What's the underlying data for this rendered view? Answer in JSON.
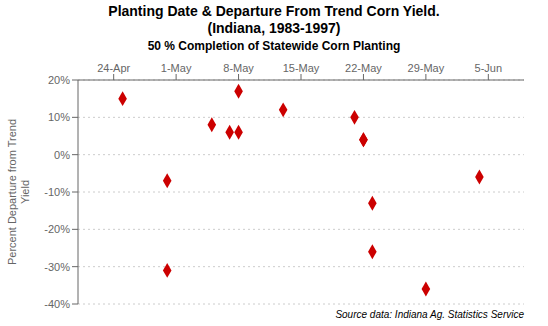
{
  "chart_data": {
    "type": "scatter",
    "title": "Planting Date & Departure From Trend Corn Yield.",
    "subtitle": "(Indiana, 1983-1997)",
    "xlabel": "50 % Completion of Statewide Corn Planting",
    "ylabel": "Percent Departure from Trend\nYield",
    "annotations": [
      "Source data: Indiana Ag. Statistics Service"
    ],
    "x": [
      6,
      6,
      11,
      13,
      14,
      14,
      19,
      27,
      28,
      28,
      29,
      29,
      35,
      1,
      41
    ],
    "values": [
      -31,
      -7,
      8,
      6,
      6,
      17,
      12,
      10,
      4,
      4,
      -26,
      -13,
      -36,
      15,
      -6
    ],
    "color": "#cc0000",
    "marker": "diamond",
    "xlim": [
      -4,
      46
    ],
    "xticks": [
      {
        "value": 0,
        "label": "24-Apr"
      },
      {
        "value": 7,
        "label": "1-May"
      },
      {
        "value": 14,
        "label": "8-May"
      },
      {
        "value": 21,
        "label": "15-May"
      },
      {
        "value": 28,
        "label": "22-May"
      },
      {
        "value": 35,
        "label": "29-May"
      },
      {
        "value": 42,
        "label": "5-Jun"
      }
    ],
    "ylim": [
      -40,
      20
    ],
    "yticks": [
      {
        "value": -40,
        "label": "-40%"
      },
      {
        "value": -30,
        "label": "-30%"
      },
      {
        "value": -20,
        "label": "-20%"
      },
      {
        "value": -10,
        "label": "-10%"
      },
      {
        "value": 0,
        "label": "0%"
      },
      {
        "value": 10,
        "label": "10%"
      },
      {
        "value": 20,
        "label": "20%"
      }
    ],
    "grid": "y"
  }
}
